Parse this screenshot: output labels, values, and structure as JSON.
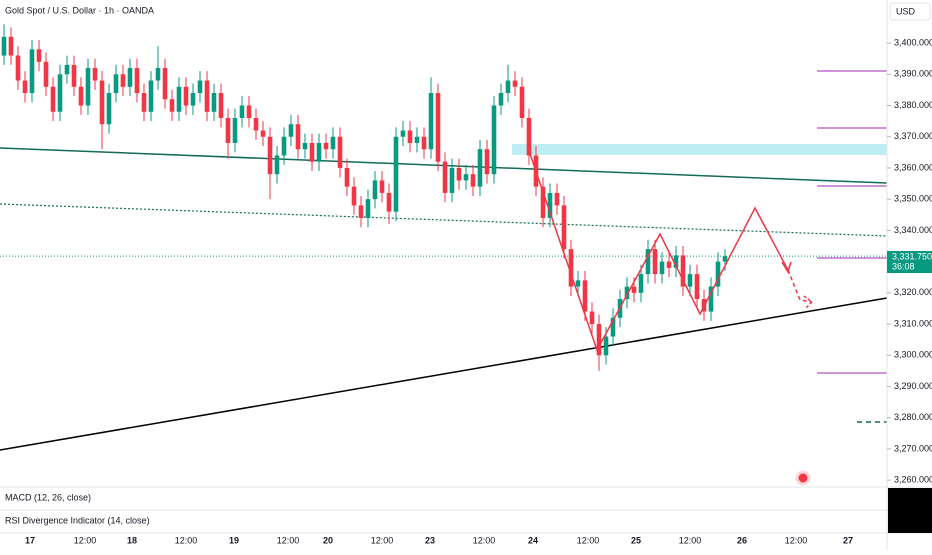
{
  "chart_data": {
    "type": "candlestick",
    "title": "Gold Spot / U.S. Dollar · 1h · OANDA",
    "currency": "USD",
    "up_color": "#089981",
    "down_color": "#f23645",
    "x_labels": [
      "17",
      "12:00",
      "18",
      "12:00",
      "19",
      "12:00",
      "20",
      "12:00",
      "23",
      "12:00",
      "24",
      "12:00",
      "25",
      "12:00",
      "26",
      "12:00",
      "27"
    ],
    "open": [
      3396,
      3402,
      3396,
      3388,
      3384,
      3398,
      3394,
      3386,
      3378,
      3390,
      3393,
      3386,
      3380,
      3392,
      3388,
      3374,
      3384,
      3390,
      3386,
      3392,
      3384,
      3378,
      3388,
      3392,
      3382,
      3378,
      3386,
      3380,
      3384,
      3388,
      3378,
      3384,
      3376,
      3368,
      3376,
      3380,
      3376,
      3372,
      3370,
      3358,
      3364,
      3370,
      3374,
      3366,
      3368,
      3362,
      3368,
      3366,
      3370,
      3360,
      3354,
      3348,
      3344,
      3350,
      3356,
      3352,
      3346,
      3370,
      3372,
      3368,
      3370,
      3366,
      3384,
      3362,
      3352,
      3360,
      3356,
      3358,
      3354,
      3366,
      3358,
      3380,
      3384,
      3388,
      3386,
      3376,
      3364,
      3354,
      3344,
      3352,
      3348,
      3334,
      3322,
      3324,
      3314,
      3310,
      3300,
      3306,
      3312,
      3318,
      3322,
      3320,
      3326,
      3334,
      3326,
      3330,
      3328,
      3332,
      3322,
      3326,
      3318,
      3314,
      3322,
      3330
    ],
    "high": [
      3406,
      3405,
      3399,
      3391,
      3401,
      3401,
      3397,
      3389,
      3393,
      3396,
      3396,
      3389,
      3395,
      3395,
      3391,
      3387,
      3393,
      3393,
      3395,
      3395,
      3387,
      3391,
      3399,
      3395,
      3385,
      3389,
      3389,
      3387,
      3391,
      3391,
      3387,
      3387,
      3379,
      3379,
      3383,
      3383,
      3379,
      3375,
      3373,
      3367,
      3373,
      3377,
      3377,
      3371,
      3371,
      3371,
      3371,
      3373,
      3373,
      3363,
      3357,
      3351,
      3353,
      3359,
      3359,
      3355,
      3373,
      3375,
      3375,
      3373,
      3373,
      3389,
      3387,
      3365,
      3363,
      3363,
      3361,
      3361,
      3369,
      3369,
      3383,
      3387,
      3393,
      3391,
      3389,
      3379,
      3367,
      3357,
      3355,
      3355,
      3351,
      3337,
      3327,
      3327,
      3317,
      3313,
      3309,
      3315,
      3321,
      3325,
      3325,
      3329,
      3337,
      3337,
      3333,
      3333,
      3335,
      3335,
      3329,
      3329,
      3321,
      3325,
      3333,
      3334
    ],
    "low": [
      3393,
      3393,
      3385,
      3381,
      3381,
      3391,
      3383,
      3375,
      3375,
      3387,
      3383,
      3377,
      3377,
      3385,
      3366,
      3371,
      3381,
      3383,
      3383,
      3381,
      3375,
      3375,
      3385,
      3379,
      3375,
      3375,
      3377,
      3377,
      3381,
      3375,
      3375,
      3373,
      3363,
      3365,
      3373,
      3373,
      3369,
      3367,
      3350,
      3355,
      3361,
      3367,
      3363,
      3363,
      3359,
      3359,
      3363,
      3363,
      3357,
      3351,
      3345,
      3341,
      3341,
      3347,
      3349,
      3342,
      3343,
      3367,
      3365,
      3365,
      3363,
      3363,
      3359,
      3349,
      3349,
      3353,
      3353,
      3351,
      3351,
      3355,
      3355,
      3377,
      3381,
      3383,
      3373,
      3361,
      3351,
      3341,
      3341,
      3345,
      3331,
      3319,
      3319,
      3311,
      3307,
      3295,
      3297,
      3303,
      3309,
      3315,
      3317,
      3317,
      3323,
      3323,
      3323,
      3325,
      3325,
      3319,
      3319,
      3315,
      3311,
      3311,
      3319,
      3327
    ],
    "close": [
      3402,
      3396,
      3388,
      3384,
      3398,
      3394,
      3386,
      3378,
      3390,
      3393,
      3386,
      3380,
      3392,
      3388,
      3374,
      3384,
      3390,
      3386,
      3392,
      3384,
      3378,
      3388,
      3392,
      3382,
      3378,
      3386,
      3380,
      3384,
      3388,
      3378,
      3384,
      3376,
      3368,
      3376,
      3380,
      3376,
      3372,
      3370,
      3358,
      3364,
      3370,
      3374,
      3366,
      3368,
      3362,
      3368,
      3366,
      3370,
      3360,
      3354,
      3348,
      3344,
      3350,
      3356,
      3352,
      3346,
      3370,
      3372,
      3368,
      3370,
      3366,
      3384,
      3362,
      3352,
      3360,
      3356,
      3358,
      3354,
      3366,
      3358,
      3380,
      3384,
      3388,
      3386,
      3376,
      3364,
      3354,
      3344,
      3352,
      3348,
      3334,
      3322,
      3324,
      3314,
      3310,
      3300,
      3306,
      3312,
      3318,
      3322,
      3320,
      3326,
      3334,
      3326,
      3330,
      3328,
      3332,
      3322,
      3326,
      3318,
      3314,
      3322,
      3330,
      3331.75
    ],
    "ylim": [
      3257.8,
      3413.8
    ],
    "yticks": [
      {
        "value": 3260,
        "label": "3,260.000"
      },
      {
        "value": 3270,
        "label": "3,270.000"
      },
      {
        "value": 3280,
        "label": "3,280.000"
      },
      {
        "value": 3290,
        "label": "3,290.000"
      },
      {
        "value": 3300,
        "label": "3,300.000"
      },
      {
        "value": 3310,
        "label": "3,310.000"
      },
      {
        "value": 3320,
        "label": "3,320.000"
      },
      {
        "value": 3330,
        "label": "3,330.000"
      },
      {
        "value": 3340,
        "label": "3,340.000"
      },
      {
        "value": 3350,
        "label": "3,350.000"
      },
      {
        "value": 3360,
        "label": "3,360.000"
      },
      {
        "value": 3370,
        "label": "3,370.000"
      },
      {
        "value": 3380,
        "label": "3,380.000"
      },
      {
        "value": 3390,
        "label": "3,390.000"
      },
      {
        "value": 3400,
        "label": "3,400.000"
      }
    ],
    "last_price_label": "3,331.750",
    "countdown": "36:08",
    "indicators": [
      "MACD (12, 26, close)",
      "RSI Divergence Indicator (14, close)"
    ]
  }
}
